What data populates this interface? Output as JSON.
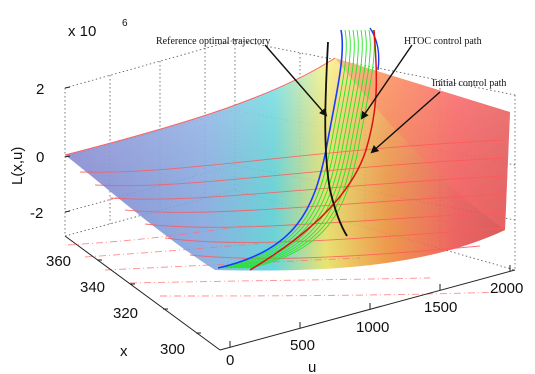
{
  "chart_data": {
    "type": "surface3d",
    "zlabel": "L(x,u)",
    "xlabel": "x",
    "ulabel": "u",
    "zscale_exponent_text": "x 10",
    "zscale_exponent_power": "6",
    "z_ticks": [
      "2",
      "0",
      "-2"
    ],
    "x_ticks": [
      "360",
      "340",
      "320",
      "300"
    ],
    "u_ticks": [
      "0",
      "500",
      "1000",
      "1500",
      "2000"
    ],
    "x_range": [
      300,
      370
    ],
    "u_range": [
      0,
      2000
    ],
    "z_range": [
      -2,
      2
    ],
    "grid": true,
    "annotations": [
      {
        "text": "Reference optimal trajectory"
      },
      {
        "text": "HTOC control path"
      },
      {
        "text": "Initial control path"
      }
    ],
    "colors": {
      "reference_trajectory": "#111111",
      "htoc_path": "#1a3cff",
      "iterations": "#22e622",
      "initial_path": "#e01010",
      "surface_contours": "#ff5a5a"
    }
  }
}
